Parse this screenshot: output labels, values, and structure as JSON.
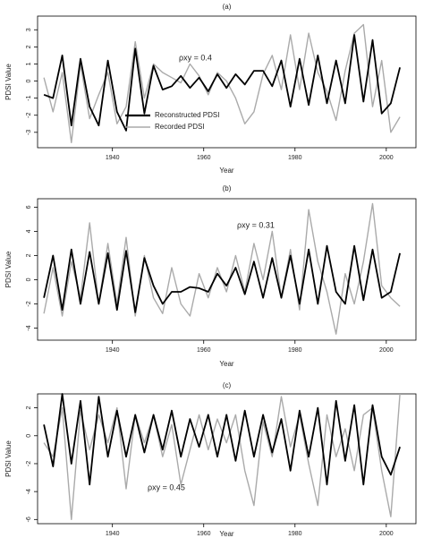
{
  "chart_data": [
    {
      "type": "line",
      "title": "(a)",
      "x_label": "Year",
      "y_label": "PDSI Value",
      "annotation": "ρxy = 0.4",
      "x": [
        1925,
        1927,
        1929,
        1931,
        1933,
        1935,
        1937,
        1939,
        1941,
        1943,
        1945,
        1947,
        1949,
        1951,
        1953,
        1955,
        1957,
        1959,
        1961,
        1963,
        1965,
        1967,
        1969,
        1971,
        1973,
        1975,
        1977,
        1979,
        1981,
        1983,
        1985,
        1987,
        1989,
        1991,
        1993,
        1995,
        1997,
        1999,
        2001,
        2003
      ],
      "series": [
        {
          "name": "Recorded PDSI",
          "color": "#aaaaaa",
          "values": [
            0.2,
            -1.8,
            0.5,
            -3.6,
            1.0,
            -2.2,
            -0.8,
            0.5,
            -2.5,
            -1.5,
            2.3,
            -1.0,
            1.0,
            0.5,
            0.2,
            -0.1,
            1.0,
            0.3,
            -0.8,
            0.5,
            0.0,
            -1.0,
            -2.5,
            -1.8,
            0.4,
            1.5,
            -0.5,
            2.7,
            -0.5,
            2.8,
            0.5,
            -0.6,
            -2.3,
            0.6,
            2.8,
            3.3,
            -1.5,
            1.2,
            -3.0,
            -2.1
          ]
        },
        {
          "name": "Reconstructed PDSI",
          "color": "#000000",
          "values": [
            -0.8,
            -1.0,
            1.5,
            -2.6,
            1.3,
            -1.5,
            -2.6,
            1.2,
            -1.8,
            -2.9,
            1.9,
            -1.9,
            0.9,
            -0.5,
            -0.3,
            0.3,
            -0.4,
            0.2,
            -0.6,
            0.4,
            -0.4,
            0.4,
            -0.2,
            0.6,
            0.6,
            -0.3,
            1.2,
            -1.5,
            1.3,
            -1.4,
            1.5,
            -1.3,
            1.2,
            -1.3,
            2.7,
            -1.2,
            2.4,
            -1.9,
            -1.3,
            0.8
          ]
        }
      ],
      "xlim": [
        1923.6,
        2006.5
      ],
      "xticks": [
        1940,
        1960,
        1980,
        2000
      ],
      "ylim": [
        -3.9,
        3.8
      ],
      "yticks": [
        -3,
        -2,
        -1,
        0,
        1,
        2,
        3
      ]
    },
    {
      "type": "line",
      "title": "(b)",
      "x_label": "Year",
      "y_label": "PDSI Value",
      "annotation": "ρxy = 0.31",
      "x": [
        1925,
        1927,
        1929,
        1931,
        1933,
        1935,
        1937,
        1939,
        1941,
        1943,
        1945,
        1947,
        1949,
        1951,
        1953,
        1955,
        1957,
        1959,
        1961,
        1963,
        1965,
        1967,
        1969,
        1971,
        1973,
        1975,
        1977,
        1979,
        1981,
        1983,
        1985,
        1987,
        1989,
        1991,
        1993,
        1995,
        1997,
        1999,
        2001,
        2003
      ],
      "series": [
        {
          "color": "#aaaaaa",
          "values": [
            -2.8,
            1.0,
            -3.0,
            1.5,
            -1.5,
            4.7,
            -2.0,
            3.0,
            -2.0,
            3.5,
            -3.0,
            2.0,
            -1.5,
            -2.8,
            1.0,
            -2.0,
            -3.0,
            0.5,
            -1.5,
            1.0,
            -1.0,
            2.0,
            -1.0,
            3.0,
            0.0,
            4.0,
            -1.5,
            2.5,
            -2.5,
            5.8,
            1.5,
            -1.0,
            -4.5,
            0.5,
            -2.0,
            1.5,
            6.3,
            -0.5,
            -1.5,
            -2.2
          ]
        },
        {
          "color": "#000000",
          "values": [
            -1.5,
            2.0,
            -2.5,
            2.5,
            -2.0,
            2.3,
            -2.0,
            2.2,
            -2.5,
            2.4,
            -2.7,
            1.8,
            -0.5,
            -2.0,
            -1.0,
            -1.0,
            -0.6,
            -0.7,
            -1.0,
            0.5,
            -0.5,
            1.0,
            -1.2,
            1.5,
            -1.5,
            1.8,
            -1.5,
            2.0,
            -2.0,
            2.5,
            -2.0,
            2.8,
            -1.0,
            -2.0,
            2.8,
            -1.7,
            2.5,
            -1.5,
            -1.0,
            2.2
          ]
        }
      ],
      "xlim": [
        1923.6,
        2006.5
      ],
      "xticks": [
        1940,
        1960,
        1980,
        2000
      ],
      "ylim": [
        -5.0,
        6.7
      ],
      "yticks": [
        -4,
        -2,
        0,
        2,
        4,
        6
      ]
    },
    {
      "type": "line",
      "title": "(c)",
      "x_label": "Year",
      "y_label": "PDSI Value",
      "annotation": "ρxy = 0.45",
      "x": [
        1925,
        1927,
        1929,
        1931,
        1933,
        1935,
        1937,
        1939,
        1941,
        1943,
        1945,
        1947,
        1949,
        1951,
        1953,
        1955,
        1957,
        1959,
        1961,
        1963,
        1965,
        1967,
        1969,
        1971,
        1973,
        1975,
        1977,
        1979,
        1981,
        1983,
        1985,
        1987,
        1989,
        1991,
        1993,
        1995,
        1997,
        1999,
        2001,
        2003
      ],
      "series": [
        {
          "color": "#aaaaaa",
          "values": [
            -0.5,
            -1.5,
            2.0,
            -6.0,
            1.8,
            -1.0,
            1.5,
            -0.5,
            2.0,
            -3.8,
            1.5,
            -0.5,
            1.5,
            -1.5,
            0.8,
            -3.5,
            -1.0,
            1.5,
            -1.0,
            1.2,
            -0.5,
            1.5,
            -2.5,
            -5.0,
            1.0,
            -1.5,
            2.8,
            -0.8,
            1.5,
            -2.0,
            -5.0,
            1.5,
            -1.5,
            0.5,
            -2.5,
            1.5,
            2.0,
            -2.5,
            -5.8,
            3.0
          ]
        },
        {
          "color": "#000000",
          "values": [
            0.8,
            -2.2,
            3.0,
            -2.0,
            2.5,
            -3.5,
            2.8,
            -1.5,
            1.8,
            -1.5,
            1.5,
            -1.2,
            1.5,
            -1.0,
            1.8,
            -1.5,
            1.2,
            -0.8,
            1.5,
            -1.5,
            1.5,
            -1.8,
            1.8,
            -1.5,
            1.5,
            -1.2,
            1.2,
            -2.5,
            1.8,
            -1.5,
            2.0,
            -3.5,
            2.5,
            -1.8,
            2.2,
            -3.5,
            2.2,
            -1.5,
            -2.8,
            -0.8
          ]
        }
      ],
      "xlim": [
        1923.6,
        2006.5
      ],
      "xticks": [
        1940,
        1960,
        1980,
        2000
      ],
      "ylim": [
        -6.3,
        3.0
      ],
      "yticks": [
        -6,
        -4,
        -2,
        0,
        2
      ]
    }
  ]
}
